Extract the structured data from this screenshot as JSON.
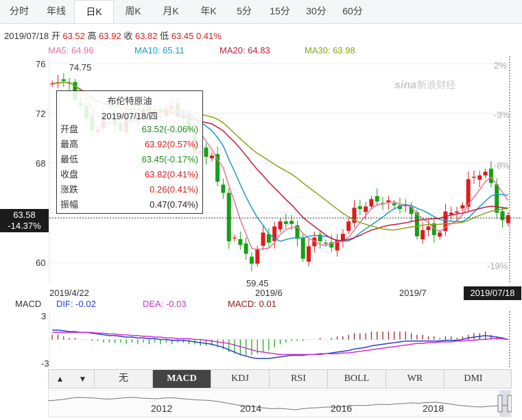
{
  "tabs": [
    {
      "label": "分时"
    },
    {
      "label": "年线"
    },
    {
      "label": "日K"
    },
    {
      "label": "周K"
    },
    {
      "label": "月K"
    },
    {
      "label": "年K"
    },
    {
      "label": "5分"
    },
    {
      "label": "15分"
    },
    {
      "label": "30分"
    },
    {
      "label": "60分"
    }
  ],
  "quote": {
    "date": "2019/07/18",
    "open_label": "开",
    "open": "63.52",
    "high_label": "高",
    "high": "63.92",
    "close_label": "收",
    "close": "63.82",
    "low_label": "低",
    "low": "63.45",
    "change": "0.41%"
  },
  "ma_legend": {
    "ma5": "MA5: 64.96",
    "ma10": "MA10: 65.11",
    "ma20": "MA20: 64.83",
    "ma30": "MA30: 63.98"
  },
  "colors": {
    "up": "#e01b1b",
    "down": "#14a014",
    "ma5": "#e8739a",
    "ma10": "#1e9ac8",
    "ma20": "#c41a3a",
    "ma30": "#86a615",
    "dif": "#2a3fcf",
    "dea": "#cc33cc"
  },
  "tooltip": {
    "title": "布伦特原油",
    "date": "2019/07/18/四",
    "rows": [
      {
        "label": "开盘",
        "value": "63.52(-0.06%)",
        "dir": "dn"
      },
      {
        "label": "最高",
        "value": "63.92(0.57%)",
        "dir": "up"
      },
      {
        "label": "最低",
        "value": "63.45(-0.17%)",
        "dir": "dn"
      },
      {
        "label": "收盘",
        "value": "63.82(0.41%)",
        "dir": "up"
      },
      {
        "label": "涨跌",
        "value": "0.26(0.41%)",
        "dir": "up"
      },
      {
        "label": "振幅",
        "value": "0.47(0.74%)",
        "dir": "n"
      }
    ]
  },
  "price_tag": {
    "price": "63.58",
    "pct": "-14.37%"
  },
  "date_tag": "2019/07/18",
  "watermark": "新浪财经",
  "macd_legend": {
    "name": "MACD",
    "dif": "DIF: -0.02",
    "dea": "DEA: -0.03",
    "macd": "MACD: 0.01"
  },
  "indicators": [
    {
      "label": "无"
    },
    {
      "label": "MACD"
    },
    {
      "label": "KDJ"
    },
    {
      "label": "RSI"
    },
    {
      "label": "BOLL"
    },
    {
      "label": "WR"
    },
    {
      "label": "DMI"
    }
  ],
  "active_indicator": "MACD",
  "nav_years": [
    "2012",
    "2014",
    "2016",
    "2018"
  ],
  "chart_data": {
    "type": "candlestick",
    "y_ticks": [
      60,
      64,
      68,
      72,
      76
    ],
    "ylim": [
      58.4,
      76.6
    ],
    "pct_ticks": [
      "2%",
      "-3%",
      "-8%",
      "-19%"
    ],
    "x_labels": [
      "2019/4/22",
      "2019/6",
      "2019/7"
    ],
    "annotations": {
      "high": "74.75",
      "low": "59.45"
    },
    "last_price": 63.58,
    "closes": [
      74.4,
      74.5,
      74.6,
      74.4,
      73.1,
      72.6,
      71.6,
      70.6,
      70.7,
      71.8,
      71.6,
      71.0,
      70.6,
      71.9,
      71.7,
      71.8,
      72.3,
      72.0,
      72.2,
      72.0,
      72.4,
      72.6,
      71.7,
      71.9,
      70.6,
      68.8,
      69.0,
      68.5,
      68.6,
      66.5,
      65.6,
      61.7,
      62.0,
      61.4,
      60.7,
      59.9,
      61.1,
      62.4,
      61.6,
      62.9,
      63.3,
      63.1,
      63.1,
      61.9,
      60.3,
      61.3,
      62.0,
      61.7,
      61.5,
      61.2,
      61.8,
      62.3,
      63.3,
      64.4,
      64.3,
      64.5,
      65.1,
      64.9,
      64.7,
      65.0,
      64.6,
      64.3,
      64.6,
      63.9,
      62.1,
      62.6,
      62.9,
      62.2,
      62.4,
      64.1,
      64.0,
      64.1,
      64.6,
      66.7,
      66.9,
      67.0,
      67.3,
      66.4,
      64.0,
      63.4,
      63.8
    ],
    "macd": {
      "ylim": [
        -3.6,
        3.6
      ],
      "y_ticks": [
        3,
        -3
      ],
      "dif": [
        1.2,
        1.2,
        1.1,
        1.0,
        1.0,
        0.9,
        0.9,
        0.8,
        0.7,
        0.6,
        0.5,
        0.5,
        0.4,
        0.3,
        0.3,
        0.2,
        0.2,
        0.1,
        0.1,
        0.0,
        0.0,
        -0.1,
        -0.1,
        -0.1,
        -0.2,
        -0.3,
        -0.4,
        -0.5,
        -0.6,
        -0.8,
        -1.0,
        -1.3,
        -1.6,
        -1.9,
        -2.1,
        -2.3,
        -2.4,
        -2.4,
        -2.4,
        -2.3,
        -2.2,
        -2.1,
        -2.0,
        -2.0,
        -2.0,
        -1.9,
        -1.9,
        -1.8,
        -1.8,
        -1.7,
        -1.6,
        -1.5,
        -1.4,
        -1.2,
        -1.1,
        -1.0,
        -0.8,
        -0.7,
        -0.6,
        -0.5,
        -0.4,
        -0.3,
        -0.2,
        -0.2,
        -0.2,
        -0.2,
        -0.2,
        -0.2,
        -0.2,
        -0.1,
        -0.1,
        -0.1,
        0.0,
        0.2,
        0.3,
        0.4,
        0.5,
        0.4,
        0.3,
        0.2,
        -0.02
      ],
      "dea": [
        0.9,
        0.9,
        0.9,
        0.9,
        0.9,
        0.9,
        0.9,
        0.9,
        0.8,
        0.8,
        0.7,
        0.7,
        0.6,
        0.6,
        0.5,
        0.5,
        0.4,
        0.4,
        0.3,
        0.3,
        0.2,
        0.2,
        0.1,
        0.1,
        0.1,
        0.0,
        0.0,
        -0.1,
        -0.2,
        -0.3,
        -0.4,
        -0.5,
        -0.7,
        -0.9,
        -1.1,
        -1.3,
        -1.5,
        -1.6,
        -1.7,
        -1.8,
        -1.9,
        -1.9,
        -1.9,
        -1.9,
        -1.9,
        -1.9,
        -1.9,
        -1.9,
        -1.8,
        -1.8,
        -1.8,
        -1.7,
        -1.7,
        -1.6,
        -1.5,
        -1.4,
        -1.3,
        -1.2,
        -1.1,
        -1.0,
        -0.9,
        -0.8,
        -0.7,
        -0.6,
        -0.5,
        -0.5,
        -0.4,
        -0.4,
        -0.3,
        -0.3,
        -0.3,
        -0.2,
        -0.2,
        -0.1,
        -0.1,
        0.0,
        0.0,
        0.1,
        0.1,
        0.1,
        -0.03
      ]
    },
    "history": [
      88,
      92,
      96,
      104,
      108,
      106,
      104,
      100,
      98,
      102,
      106,
      108,
      104,
      102,
      100,
      104,
      106,
      102,
      98,
      94,
      92,
      90,
      84,
      76,
      68,
      60,
      56,
      52,
      46,
      42,
      44,
      40,
      36,
      42,
      46,
      48,
      52,
      50,
      54,
      58,
      62,
      60,
      64,
      68,
      66,
      70,
      72,
      76,
      74,
      78,
      80,
      76,
      70,
      62,
      58,
      54,
      52,
      56,
      58,
      62,
      60
    ]
  }
}
